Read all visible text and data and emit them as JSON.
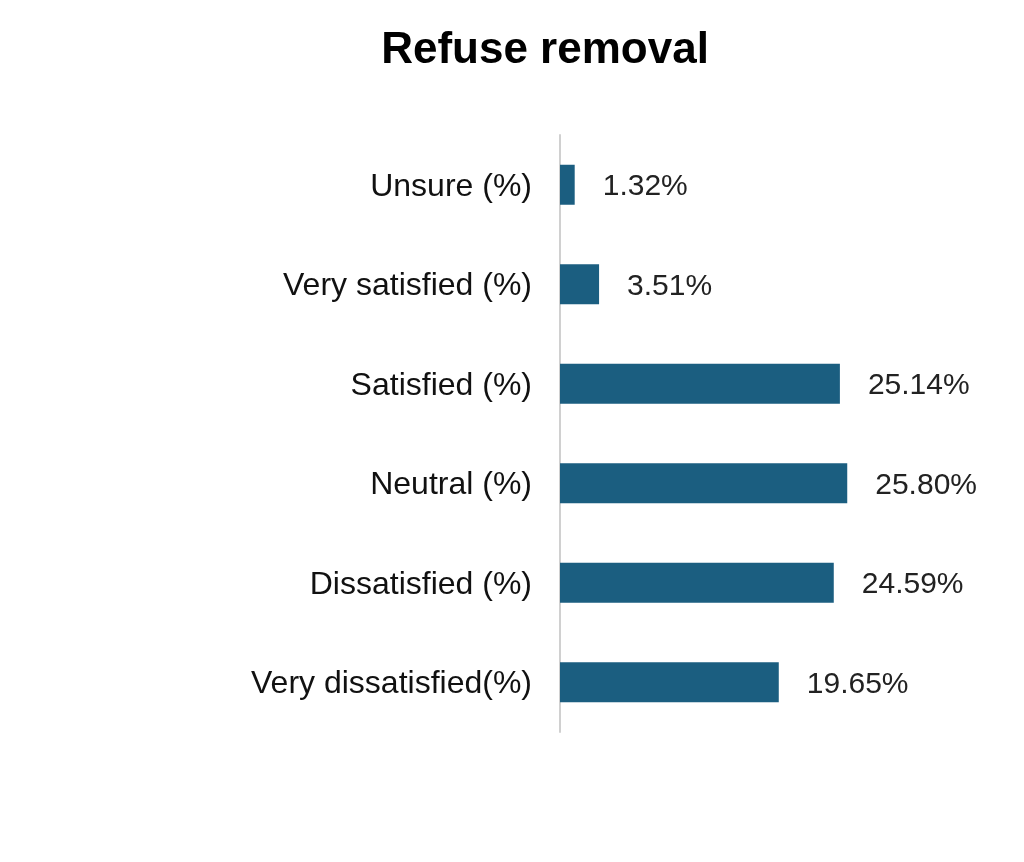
{
  "chart_data": {
    "type": "bar",
    "orientation": "horizontal",
    "title": "Refuse removal",
    "categories": [
      "Unsure (%)",
      "Very satisfied (%)",
      "Satisfied (%)",
      "Neutral (%)",
      "Dissatisfied (%)",
      "Very dissatisfied(%)"
    ],
    "values": [
      1.32,
      3.51,
      25.14,
      25.8,
      24.59,
      19.65
    ],
    "value_labels": [
      "1.32%",
      "3.51%",
      "25.14%",
      "25.80%",
      "24.59%",
      "19.65%"
    ],
    "color": "#1b5e80"
  }
}
